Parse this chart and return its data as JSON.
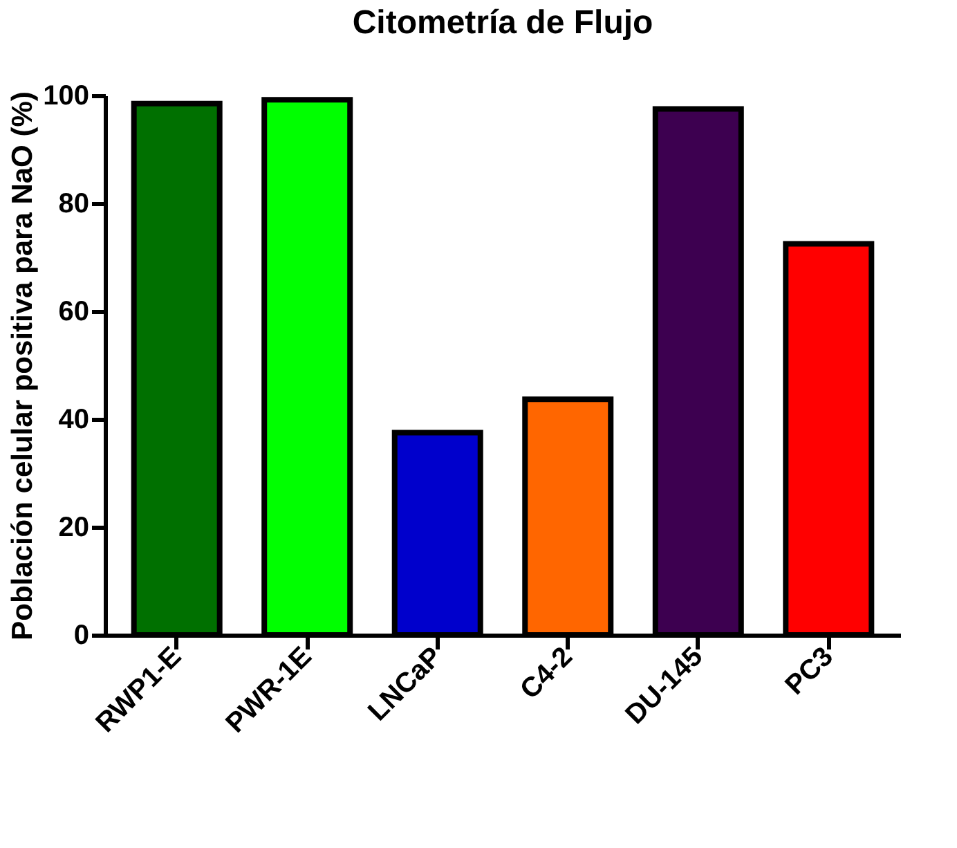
{
  "chart_data": {
    "type": "bar",
    "title": "Citometría de Flujo",
    "ylabel": "Población celular positiva para NaO (%)",
    "categories": [
      "RWP1-E",
      "PWR-1E",
      "LNCaP",
      "C4-2",
      "DU-145",
      "PC3"
    ],
    "values": [
      98.5,
      99.2,
      37.5,
      43.7,
      97.5,
      72.5
    ],
    "colors": [
      "#007000",
      "#00ff00",
      "#0000cc",
      "#ff6600",
      "#3d0050",
      "#ff0000"
    ],
    "ylim": [
      0,
      100
    ],
    "yticks": [
      0,
      20,
      40,
      60,
      80,
      100
    ],
    "grid": false
  }
}
